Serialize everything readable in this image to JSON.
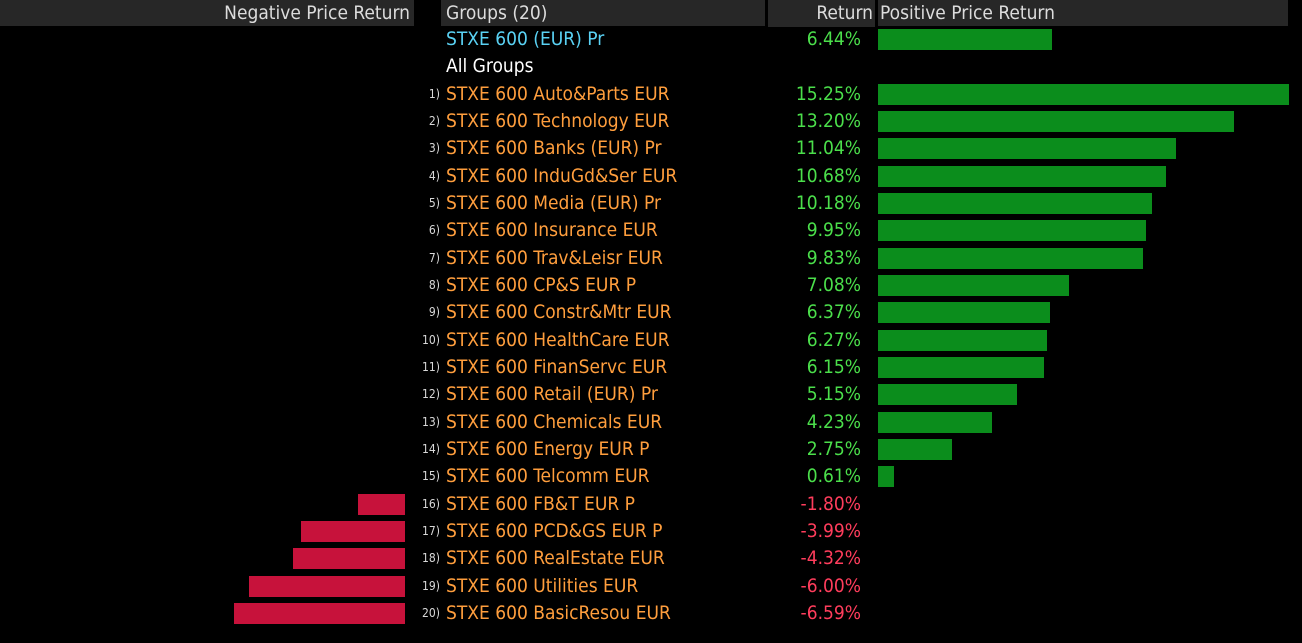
{
  "header": {
    "negative_label": "Negative Price Return",
    "groups_label": "Groups (20)",
    "return_label": "Return",
    "positive_label": "Positive Price Return"
  },
  "index_row": {
    "name": "STXE 600 (EUR) Pr",
    "return": "6.44%",
    "value": 6.44
  },
  "section_label": "All Groups",
  "colors": {
    "positive_bar": "#0b8d1c",
    "negative_bar": "#c7123b",
    "positive_text": "#4bdf4b",
    "negative_text": "#ff3d5c",
    "group_text": "#ff9e3d",
    "index_text": "#5ad2f4"
  },
  "groups": [
    {
      "rank": "1)",
      "name": "STXE 600 Auto&Parts EUR",
      "return": "15.25%",
      "value": 15.25
    },
    {
      "rank": "2)",
      "name": "STXE 600 Technology EUR",
      "return": "13.20%",
      "value": 13.2
    },
    {
      "rank": "3)",
      "name": "STXE 600 Banks (EUR) Pr",
      "return": "11.04%",
      "value": 11.04
    },
    {
      "rank": "4)",
      "name": "STXE 600 InduGd&Ser EUR",
      "return": "10.68%",
      "value": 10.68
    },
    {
      "rank": "5)",
      "name": "STXE 600 Media (EUR) Pr",
      "return": "10.18%",
      "value": 10.18
    },
    {
      "rank": "6)",
      "name": "STXE 600 Insurance EUR",
      "return": "9.95%",
      "value": 9.95
    },
    {
      "rank": "7)",
      "name": "STXE 600 Trav&Leisr EUR",
      "return": "9.83%",
      "value": 9.83
    },
    {
      "rank": "8)",
      "name": "STXE 600 CP&S EUR P",
      "return": "7.08%",
      "value": 7.08
    },
    {
      "rank": "9)",
      "name": "STXE 600 Constr&Mtr EUR",
      "return": "6.37%",
      "value": 6.37
    },
    {
      "rank": "10)",
      "name": "STXE 600 HealthCare EUR",
      "return": "6.27%",
      "value": 6.27
    },
    {
      "rank": "11)",
      "name": "STXE 600 FinanServc EUR",
      "return": "6.15%",
      "value": 6.15
    },
    {
      "rank": "12)",
      "name": "STXE 600 Retail (EUR) Pr",
      "return": "5.15%",
      "value": 5.15
    },
    {
      "rank": "13)",
      "name": "STXE 600 Chemicals EUR",
      "return": "4.23%",
      "value": 4.23
    },
    {
      "rank": "14)",
      "name": "STXE 600 Energy EUR P",
      "return": "2.75%",
      "value": 2.75
    },
    {
      "rank": "15)",
      "name": "STXE 600 Telcomm EUR",
      "return": "0.61%",
      "value": 0.61
    },
    {
      "rank": "16)",
      "name": "STXE 600 FB&T EUR P",
      "return": "-1.80%",
      "value": -1.8
    },
    {
      "rank": "17)",
      "name": "STXE 600 PCD&GS EUR P",
      "return": "-3.99%",
      "value": -3.99
    },
    {
      "rank": "18)",
      "name": "STXE 600 RealEstate EUR",
      "return": "-4.32%",
      "value": -4.32
    },
    {
      "rank": "19)",
      "name": "STXE 600 Utilities EUR",
      "return": "-6.00%",
      "value": -6.0
    },
    {
      "rank": "20)",
      "name": "STXE 600 BasicResou EUR",
      "return": "-6.59%",
      "value": -6.59
    }
  ]
}
